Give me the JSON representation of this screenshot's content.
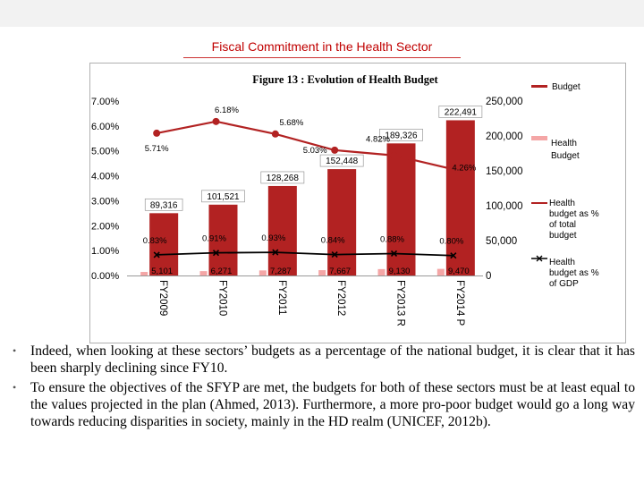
{
  "slide": {
    "title": "Fiscal Commitment in the Health Sector"
  },
  "chart_data": {
    "type": "bar",
    "title": "Figure 13 : Evolution of Health Budget",
    "categories": [
      "FY2009",
      "FY2010",
      "FY2011",
      "FY2012",
      "FY2013 R",
      "FY2014 P"
    ],
    "series": [
      {
        "name": "Health Budget",
        "kind": "bar",
        "axis": "right",
        "color": "#b22222",
        "values": [
          89316,
          101521,
          128268,
          152448,
          189326,
          222491
        ],
        "labels": [
          "89,316",
          "101,521",
          "128,268",
          "152,448",
          "189,326",
          "222,491"
        ]
      },
      {
        "name": "Health budget as % of total budget",
        "kind": "line",
        "axis": "left",
        "color": "#b22222",
        "values": [
          5.71,
          6.18,
          5.68,
          5.03,
          4.82,
          4.26
        ],
        "labels": [
          "5.71%",
          "6.18%",
          "5.68%",
          "5.03%",
          "4.82%",
          "4.26%"
        ]
      },
      {
        "name": "Health budget as % of GDP",
        "kind": "line",
        "axis": "left",
        "color": "#000000",
        "values": [
          0.83,
          0.91,
          0.93,
          0.84,
          0.88,
          0.8
        ],
        "labels": [
          "0.83%",
          "0.91%",
          "0.93%",
          "0.84%",
          "0.88%",
          "0.80%"
        ]
      },
      {
        "name": "",
        "kind": "bar-small",
        "axis": "right",
        "color": "#f4a6a6",
        "values": [
          5101,
          6271,
          7287,
          7667,
          9130,
          9470
        ],
        "labels": [
          "5,101",
          "6,271",
          "7,287",
          "7,667",
          "9,130",
          "9,470"
        ]
      }
    ],
    "left_axis": {
      "ylim": [
        0,
        7
      ],
      "ticks": [
        "0.00%",
        "1.00%",
        "2.00%",
        "3.00%",
        "4.00%",
        "5.00%",
        "6.00%",
        "7.00%"
      ]
    },
    "right_axis": {
      "ylim": [
        0,
        250000
      ],
      "ticks": [
        "0",
        "50,000",
        "100,000",
        "150,000",
        "200,000",
        "250,000"
      ]
    },
    "legend_position": "right",
    "legend": [
      "Budget",
      "Health Budget",
      "Health budget as % of total budget",
      "Health budget as % of GDP"
    ],
    "grid": false
  },
  "bullets": [
    "Indeed, when looking at these sectors’ budgets as a percentage of the national budget, it is clear that it has been sharply declining since FY10.",
    "To ensure the objectives of the SFYP are met, the budgets for both of these sectors must be at least equal to the values projected in the plan (Ahmed, 2013). Furthermore, a more pro-poor budget would go a long way towards reducing disparities in society, mainly in the HD realm (UNICEF, 2012b)."
  ]
}
